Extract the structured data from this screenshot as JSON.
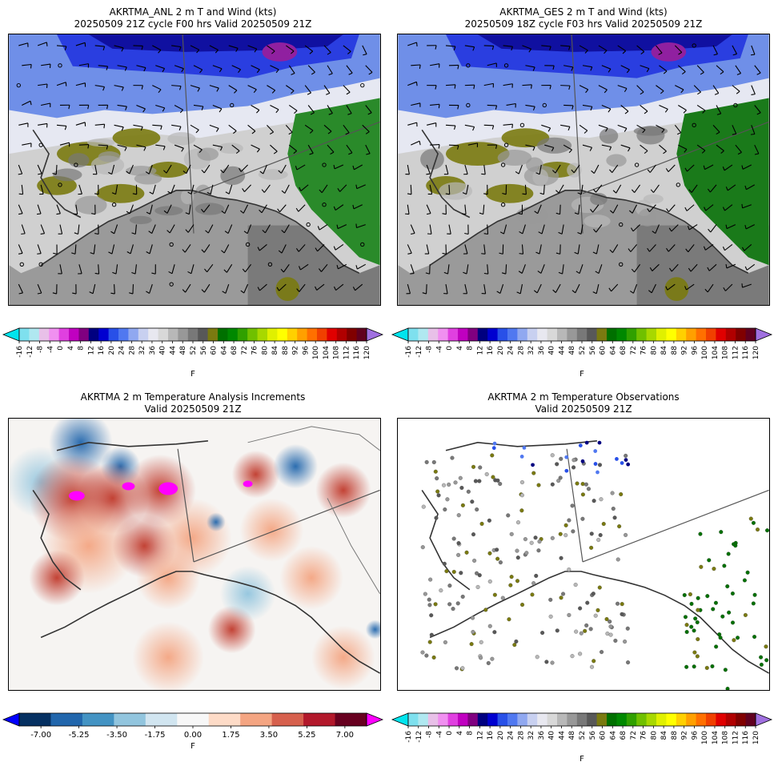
{
  "panels": [
    {
      "title1": "AKRTMA_ANL 2 m T and Wind (kts)",
      "title2": "20250509 21Z cycle F00 hrs Valid 20250509 21Z",
      "kind": "temp-wind",
      "colorbar": "temperature"
    },
    {
      "title1": "AKRTMA_GES 2 m T and Wind (kts)",
      "title2": "20250509 18Z cycle F03 hrs Valid 20250509 21Z",
      "kind": "temp-wind",
      "colorbar": "temperature"
    },
    {
      "title1": "AKRTMA 2 m Temperature Analysis Increments",
      "title2": "Valid 20250509 21Z",
      "kind": "increment",
      "colorbar": "increment"
    },
    {
      "title1": "AKRTMA 2 m Temperature Observations",
      "title2": "Valid 20250509 21Z",
      "kind": "observations",
      "colorbar": "temperature"
    }
  ],
  "chart_data": [
    {
      "type": "heatmap",
      "name": "temperature colorbar",
      "unit_label": "F",
      "ticks": [
        "-16",
        "-12",
        "-8",
        "-4",
        "0",
        "4",
        "8",
        "12",
        "16",
        "20",
        "24",
        "28",
        "32",
        "36",
        "40",
        "44",
        "48",
        "52",
        "56",
        "60",
        "64",
        "68",
        "72",
        "76",
        "80",
        "84",
        "88",
        "92",
        "96",
        "100",
        "104",
        "108",
        "112",
        "116",
        "120"
      ],
      "colors": [
        "#00e5ee",
        "#7ee0ee",
        "#b0e8f0",
        "#e8c0e8",
        "#f090f0",
        "#e040e0",
        "#c000c0",
        "#800080",
        "#000080",
        "#0000d0",
        "#2850e8",
        "#5078f0",
        "#90a8f0",
        "#c8d0f0",
        "#e8e8f0",
        "#d8d8d8",
        "#b8b8b8",
        "#989898",
        "#787878",
        "#585858",
        "#7a7a10",
        "#007000",
        "#008800",
        "#30a000",
        "#70c000",
        "#a8d800",
        "#e0f000",
        "#ffff00",
        "#ffd000",
        "#ffa000",
        "#ff7000",
        "#f04000",
        "#e00000",
        "#b00000",
        "#800000",
        "#600020",
        "#a070e0"
      ]
    },
    {
      "type": "heatmap",
      "name": "increment colorbar",
      "unit_label": "F",
      "ticks": [
        "-7.00",
        "-5.25",
        "-3.50",
        "-1.75",
        "0.00",
        "1.75",
        "3.50",
        "5.25",
        "7.00"
      ],
      "range": [
        -8,
        8
      ],
      "colors": [
        "#0000ff",
        "#053061",
        "#2166ac",
        "#4393c3",
        "#92c5de",
        "#d1e5f0",
        "#f7f7f7",
        "#fddbc7",
        "#f4a582",
        "#d6604d",
        "#b2182b",
        "#67001f",
        "#ff00ff"
      ]
    }
  ]
}
